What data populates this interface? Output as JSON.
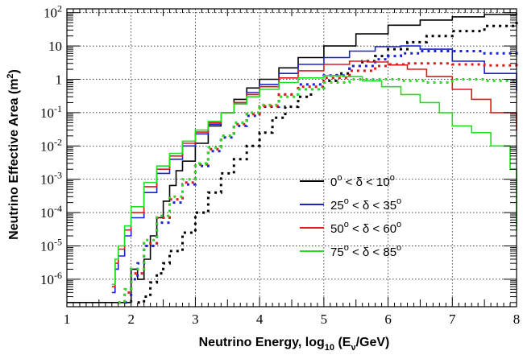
{
  "chart_data": {
    "type": "line",
    "xlabel": {
      "main": "Neutrino Energy, log",
      "sub1": "10",
      "mid": " (E",
      "sub2": "ν",
      "end": "/GeV)"
    },
    "ylabel": {
      "main": "Neutrino Effective Area (m",
      "sup": "2",
      "end": ")"
    },
    "xlim": [
      1,
      8
    ],
    "ylim": [
      1.5e-07,
      130
    ],
    "yscale": "log",
    "grid": true,
    "legend_position": "lower-right",
    "x_ticks": [
      "1",
      "2",
      "3",
      "4",
      "5",
      "6",
      "7",
      "8"
    ],
    "y_ticks": [
      {
        "base": "10",
        "exp": "2",
        "value": 100
      },
      {
        "base": "10",
        "exp": "",
        "value": 10
      },
      {
        "base": "1",
        "exp": "",
        "value": 1
      },
      {
        "base": "10",
        "exp": "-1",
        "value": 0.1
      },
      {
        "base": "10",
        "exp": "-2",
        "value": 0.01
      },
      {
        "base": "10",
        "exp": "-3",
        "value": 0.001
      },
      {
        "base": "10",
        "exp": "-4",
        "value": 0.0001
      },
      {
        "base": "10",
        "exp": "-5",
        "value": 1e-05
      },
      {
        "base": "10",
        "exp": "-6",
        "value": 1e-06
      }
    ],
    "series": [
      {
        "name": "0° < δ < 10°",
        "label": {
          "a": "0",
          "b": " < δ < 10",
          "c": "o"
        },
        "color": "#000000",
        "solid": {
          "x": [
            1.0,
            1.6,
            1.75,
            1.85,
            1.95,
            2.0,
            2.1,
            2.2,
            2.3,
            2.4,
            2.5,
            2.6,
            2.7,
            2.8,
            3.0,
            3.2,
            3.4,
            3.6,
            3.8,
            4.0,
            4.3,
            4.6,
            5.0,
            5.5,
            6.0,
            6.5,
            7.0,
            7.5,
            8.0
          ],
          "y": [
            2e-07,
            2e-07,
            2e-07,
            2e-07,
            2e-07,
            2e-06,
            1e-06,
            4e-06,
            2e-05,
            7e-05,
            0.00022,
            0.00065,
            0.0018,
            0.0035,
            0.012,
            0.04,
            0.1,
            0.25,
            0.55,
            1.0,
            2.2,
            4.5,
            10,
            23,
            42,
            60,
            75,
            88,
            98
          ]
        },
        "dotted": {
          "x": [
            2.1,
            2.2,
            2.3,
            2.4,
            2.5,
            2.6,
            2.8,
            3.0,
            3.2,
            3.4,
            3.6,
            3.8,
            4.0,
            4.2,
            4.4,
            4.6,
            4.8,
            5.0,
            5.2,
            5.4,
            5.6,
            5.8,
            6.0,
            6.3,
            6.6,
            7.0,
            7.5,
            8.0
          ],
          "y": [
            2e-07,
            3e-07,
            8e-07,
            1.5e-06,
            3e-06,
            7e-06,
            2.5e-05,
            0.0001,
            0.0004,
            0.0015,
            0.004,
            0.01,
            0.025,
            0.07,
            0.15,
            0.3,
            0.5,
            0.9,
            1.5,
            2.5,
            3.5,
            5,
            8,
            13,
            20,
            28,
            40,
            55
          ]
        }
      },
      {
        "name": "25° < δ < 35°",
        "label": {
          "a": "25",
          "b": " < δ < 35",
          "c": "o"
        },
        "color": "#1b22d4",
        "solid": {
          "x": [
            1.7,
            1.75,
            1.8,
            1.9,
            2.0,
            2.2,
            2.4,
            2.6,
            2.8,
            3.0,
            3.2,
            3.4,
            3.6,
            3.8,
            4.0,
            4.3,
            4.6,
            5.0,
            5.4,
            5.8,
            6.2,
            6.5,
            7.0,
            7.5,
            8.0
          ],
          "y": [
            4e-07,
            2e-06,
            5e-06,
            2e-05,
            7e-05,
            0.0004,
            0.0015,
            0.004,
            0.01,
            0.023,
            0.045,
            0.1,
            0.2,
            0.4,
            0.7,
            1.5,
            2.8,
            4.5,
            7,
            9.5,
            10,
            8,
            3.5,
            1.5,
            0.45
          ]
        },
        "dotted": {
          "x": [
            1.9,
            2.0,
            2.1,
            2.2,
            2.4,
            2.6,
            2.8,
            3.0,
            3.2,
            3.4,
            3.6,
            3.8,
            4.0,
            4.3,
            4.6,
            5.0,
            5.4,
            5.8,
            6.0,
            6.2,
            6.5,
            7.0,
            7.5,
            8.0
          ],
          "y": [
            2e-07,
            1e-06,
            3e-06,
            1e-05,
            5e-05,
            0.0002,
            0.0007,
            0.0025,
            0.007,
            0.018,
            0.04,
            0.08,
            0.15,
            0.35,
            0.7,
            1.3,
            2.5,
            4,
            5,
            6,
            7,
            7,
            6,
            5.5
          ]
        }
      },
      {
        "name": "50° < δ < 60°",
        "label": {
          "a": "50",
          "b": " < δ < 60",
          "c": "o"
        },
        "color": "#e01a1a",
        "solid": {
          "x": [
            1.7,
            1.75,
            1.8,
            1.9,
            2.0,
            2.2,
            2.4,
            2.6,
            2.8,
            3.0,
            3.2,
            3.4,
            3.6,
            3.8,
            4.0,
            4.3,
            4.6,
            5.0,
            5.4,
            5.7,
            6.0,
            6.3,
            6.6,
            7.0,
            7.3,
            7.6,
            8.0
          ],
          "y": [
            6e-07,
            3e-06,
            8e-06,
            3e-05,
            0.0001,
            0.0006,
            0.002,
            0.005,
            0.012,
            0.026,
            0.05,
            0.1,
            0.2,
            0.35,
            0.6,
            1.1,
            1.8,
            2.8,
            3.5,
            3.3,
            2.7,
            2,
            1.2,
            0.5,
            0.25,
            0.1,
            0.03
          ]
        },
        "dotted": {
          "x": [
            1.8,
            1.9,
            2.0,
            2.2,
            2.4,
            2.6,
            2.8,
            3.0,
            3.2,
            3.4,
            3.6,
            3.8,
            4.0,
            4.3,
            4.6,
            5.0,
            5.4,
            5.8,
            6.0,
            6.3,
            6.6,
            7.0,
            7.5,
            8.0
          ],
          "y": [
            2e-07,
            4e-07,
            1.5e-06,
            1.2e-05,
            7e-05,
            0.00025,
            0.0008,
            0.0028,
            0.008,
            0.02,
            0.045,
            0.09,
            0.16,
            0.35,
            0.6,
            1.1,
            1.8,
            2.5,
            2.8,
            3,
            3,
            2.8,
            2.6,
            2.5
          ]
        }
      },
      {
        "name": "75° < δ < 85°",
        "label": {
          "a": "75",
          "b": " < δ < 85",
          "c": "o"
        },
        "color": "#22dd22",
        "solid": {
          "x": [
            1.7,
            1.75,
            1.8,
            1.9,
            2.0,
            2.2,
            2.4,
            2.6,
            2.8,
            3.0,
            3.2,
            3.4,
            3.6,
            3.8,
            4.0,
            4.3,
            4.6,
            5.0,
            5.3,
            5.6,
            5.9,
            6.2,
            6.5,
            6.8,
            7.0,
            7.3,
            7.6,
            7.9,
            8.0
          ],
          "y": [
            7e-07,
            4e-06,
            1e-05,
            4e-05,
            0.00015,
            0.0008,
            0.0025,
            0.006,
            0.014,
            0.03,
            0.055,
            0.1,
            0.18,
            0.3,
            0.5,
            0.8,
            1.1,
            1.3,
            1.2,
            0.9,
            0.6,
            0.35,
            0.2,
            0.1,
            0.04,
            0.025,
            0.01,
            0.002,
            3e-05
          ]
        },
        "dotted": {
          "x": [
            1.8,
            1.9,
            2.0,
            2.2,
            2.4,
            2.6,
            2.8,
            3.0,
            3.2,
            3.4,
            3.6,
            3.8,
            4.0,
            4.3,
            4.6,
            5.0,
            5.4,
            5.8,
            6.2,
            6.6,
            7.0,
            7.5,
            8.0
          ],
          "y": [
            2e-07,
            5e-07,
            2e-06,
            1.5e-05,
            8e-05,
            0.0003,
            0.001,
            0.003,
            0.009,
            0.02,
            0.05,
            0.1,
            0.17,
            0.3,
            0.5,
            0.8,
            1,
            1,
            0.9,
            0.8,
            1,
            0.9,
            1
          ]
        }
      }
    ]
  }
}
